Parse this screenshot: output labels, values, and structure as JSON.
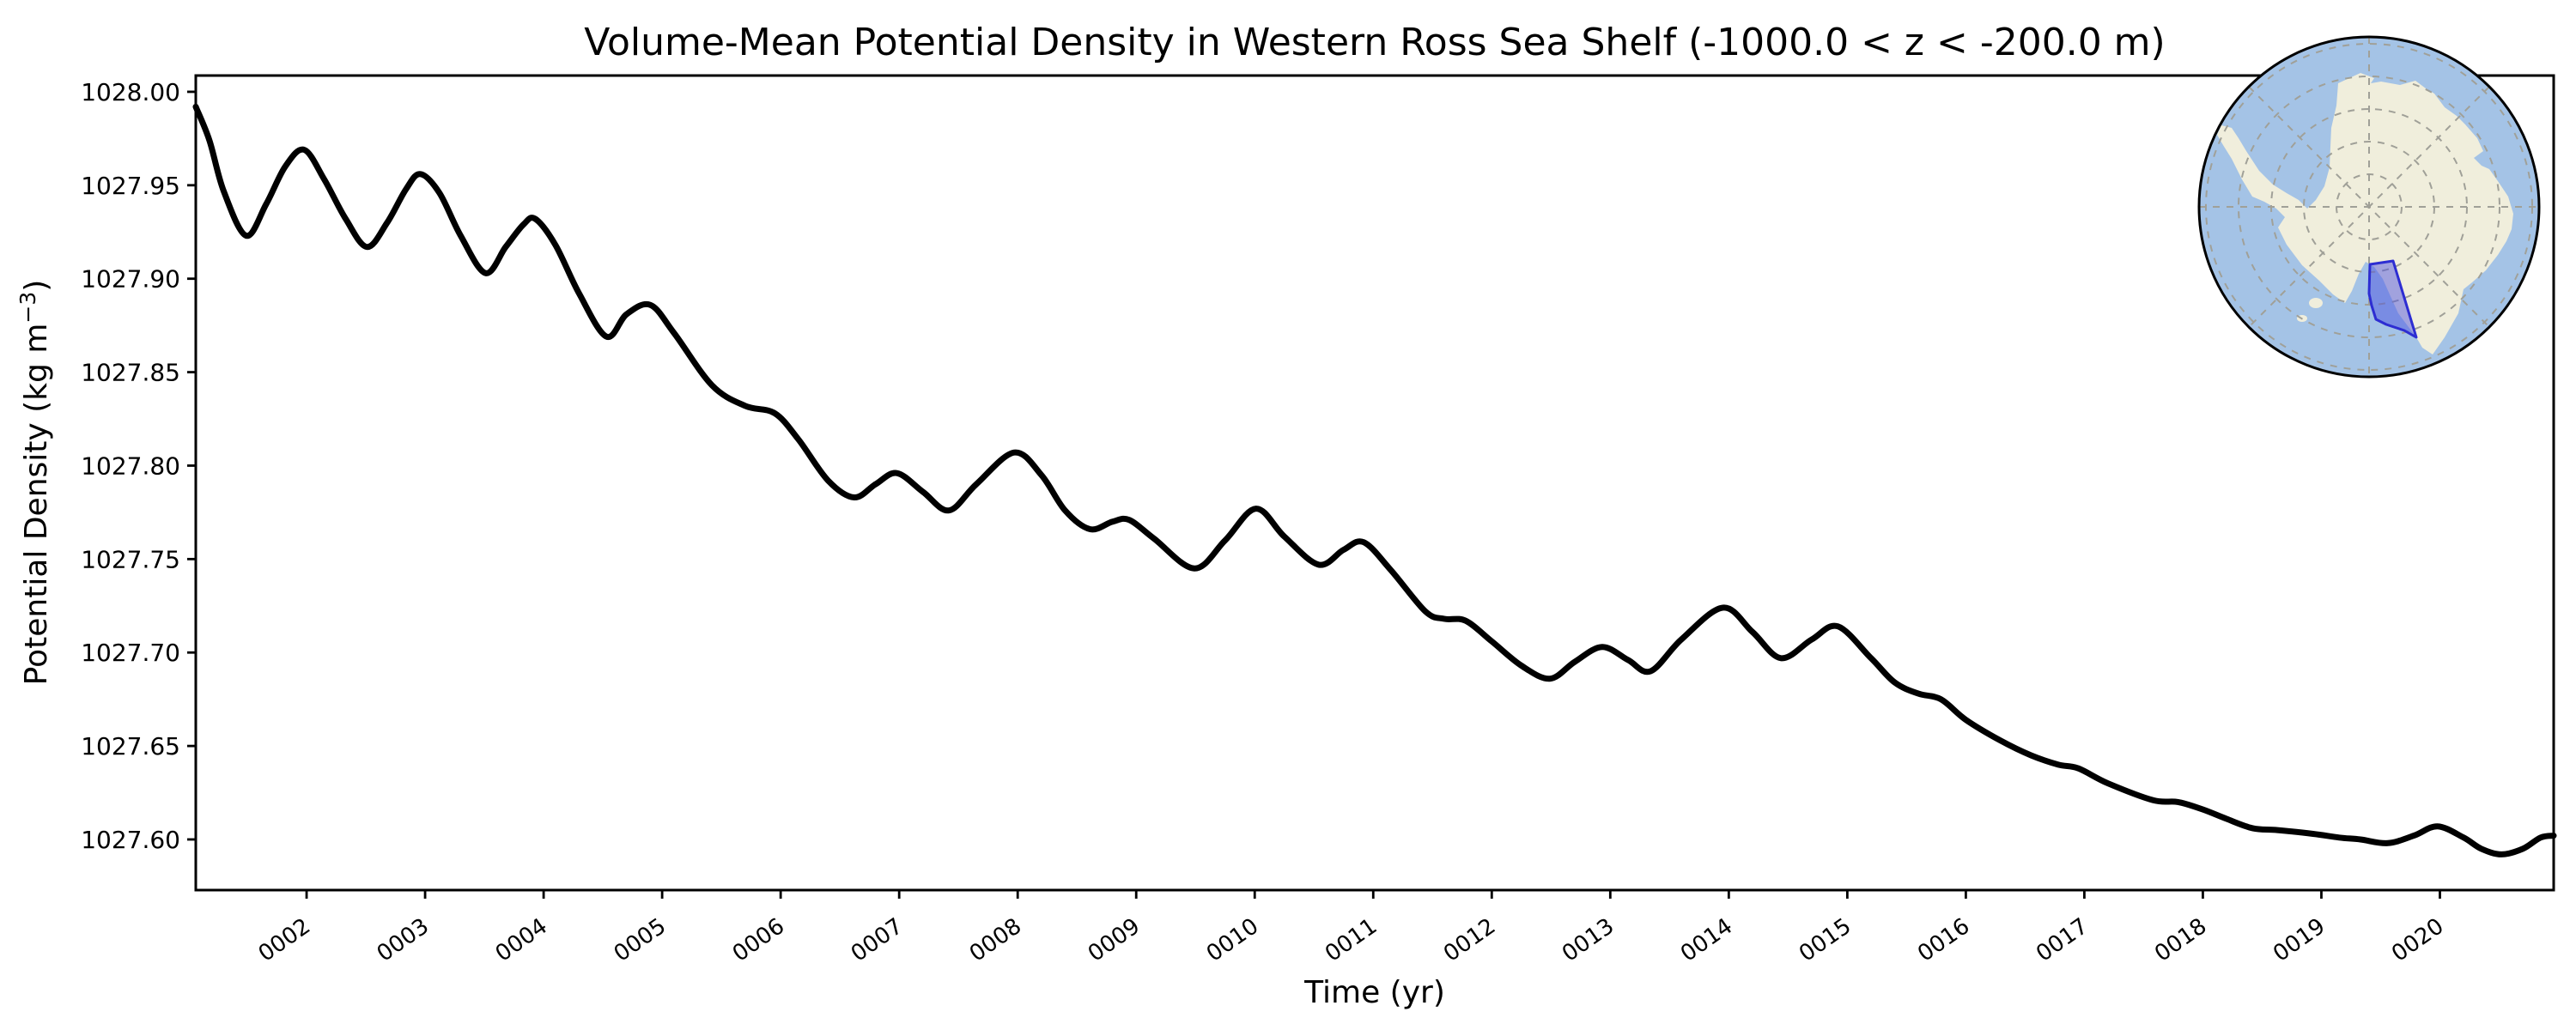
{
  "title": "Volume-Mean Potential Density in Western Ross Sea Shelf (-1000.0 < z < -200.0 m)",
  "chart_data": {
    "type": "line",
    "title": "Volume-Mean Potential Density in Western Ross Sea Shelf (-1000.0 < z < -200.0 m)",
    "xlabel": "Time (yr)",
    "ylabel": "Potential Density (kg m⁻³)",
    "ylabel_parts": {
      "pre": "Potential Density (kg m",
      "sup": "−3",
      "post": ")"
    },
    "xlim": [
      1.065,
      20.96
    ],
    "ylim": [
      1027.5729,
      1028.0087
    ],
    "grid": false,
    "legend": "none",
    "line_color": "#000000",
    "line_width": 7,
    "x_tick_values": [
      2,
      3,
      4,
      5,
      6,
      7,
      8,
      9,
      10,
      11,
      12,
      13,
      14,
      15,
      16,
      17,
      18,
      19,
      20
    ],
    "x_tick_labels": [
      "0002",
      "0003",
      "0004",
      "0005",
      "0006",
      "0007",
      "0008",
      "0009",
      "0010",
      "0011",
      "0012",
      "0013",
      "0014",
      "0015",
      "0016",
      "0017",
      "0018",
      "0019",
      "0020"
    ],
    "y_tick_values": [
      1028.0,
      1027.95,
      1027.9,
      1027.85,
      1027.8,
      1027.75,
      1027.7,
      1027.65,
      1027.6
    ],
    "y_tick_labels": [
      "1028.00",
      "1027.95",
      "1027.90",
      "1027.85",
      "1027.80",
      "1027.75",
      "1027.70",
      "1027.65",
      "1027.60"
    ],
    "series": [
      {
        "name": "volume-mean potential density",
        "points": [
          [
            1.065,
            1027.992
          ],
          [
            1.18,
            1027.974
          ],
          [
            1.3,
            1027.947
          ],
          [
            1.49,
            1027.923
          ],
          [
            1.66,
            1027.94
          ],
          [
            1.82,
            1027.96
          ],
          [
            1.98,
            1027.969
          ],
          [
            2.15,
            1027.953
          ],
          [
            2.33,
            1027.932
          ],
          [
            2.51,
            1027.917
          ],
          [
            2.68,
            1027.93
          ],
          [
            2.84,
            1027.948
          ],
          [
            2.96,
            1027.956
          ],
          [
            3.12,
            1027.946
          ],
          [
            3.3,
            1027.923
          ],
          [
            3.51,
            1027.903
          ],
          [
            3.68,
            1027.917
          ],
          [
            3.83,
            1027.929
          ],
          [
            3.93,
            1027.932
          ],
          [
            4.1,
            1027.918
          ],
          [
            4.3,
            1027.892
          ],
          [
            4.53,
            1027.869
          ],
          [
            4.7,
            1027.881
          ],
          [
            4.9,
            1027.886
          ],
          [
            5.1,
            1027.871
          ],
          [
            5.42,
            1027.843
          ],
          [
            5.7,
            1027.832
          ],
          [
            5.95,
            1027.828
          ],
          [
            6.15,
            1027.814
          ],
          [
            6.4,
            1027.792
          ],
          [
            6.62,
            1027.783
          ],
          [
            6.8,
            1027.79
          ],
          [
            6.98,
            1027.796
          ],
          [
            7.2,
            1027.786
          ],
          [
            7.42,
            1027.776
          ],
          [
            7.65,
            1027.79
          ],
          [
            7.97,
            1027.807
          ],
          [
            8.2,
            1027.795
          ],
          [
            8.4,
            1027.776
          ],
          [
            8.61,
            1027.766
          ],
          [
            8.8,
            1027.77
          ],
          [
            8.94,
            1027.771
          ],
          [
            9.15,
            1027.761
          ],
          [
            9.49,
            1027.745
          ],
          [
            9.75,
            1027.76
          ],
          [
            10.01,
            1027.777
          ],
          [
            10.25,
            1027.762
          ],
          [
            10.54,
            1027.747
          ],
          [
            10.75,
            1027.755
          ],
          [
            10.92,
            1027.759
          ],
          [
            11.15,
            1027.744
          ],
          [
            11.44,
            1027.722
          ],
          [
            11.6,
            1027.718
          ],
          [
            11.78,
            1027.717
          ],
          [
            12.0,
            1027.706
          ],
          [
            12.25,
            1027.693
          ],
          [
            12.49,
            1027.686
          ],
          [
            12.7,
            1027.695
          ],
          [
            12.93,
            1027.703
          ],
          [
            13.15,
            1027.696
          ],
          [
            13.34,
            1027.69
          ],
          [
            13.6,
            1027.707
          ],
          [
            13.95,
            1027.724
          ],
          [
            14.2,
            1027.711
          ],
          [
            14.44,
            1027.697
          ],
          [
            14.7,
            1027.707
          ],
          [
            14.92,
            1027.714
          ],
          [
            15.2,
            1027.697
          ],
          [
            15.4,
            1027.684
          ],
          [
            15.6,
            1027.678
          ],
          [
            15.79,
            1027.675
          ],
          [
            16.0,
            1027.664
          ],
          [
            16.29,
            1027.653
          ],
          [
            16.55,
            1027.645
          ],
          [
            16.78,
            1027.64
          ],
          [
            16.95,
            1027.638
          ],
          [
            17.2,
            1027.63
          ],
          [
            17.58,
            1027.621
          ],
          [
            17.79,
            1027.62
          ],
          [
            18.0,
            1027.616
          ],
          [
            18.2,
            1027.611
          ],
          [
            18.42,
            1027.606
          ],
          [
            18.63,
            1027.605
          ],
          [
            18.93,
            1027.603
          ],
          [
            19.15,
            1027.601
          ],
          [
            19.33,
            1027.6
          ],
          [
            19.56,
            1027.598
          ],
          [
            19.78,
            1027.602
          ],
          [
            19.98,
            1027.607
          ],
          [
            20.2,
            1027.601
          ],
          [
            20.35,
            1027.595
          ],
          [
            20.52,
            1027.592
          ],
          [
            20.7,
            1027.595
          ],
          [
            20.85,
            1027.601
          ],
          [
            20.96,
            1027.602
          ]
        ]
      }
    ]
  },
  "inset_map": {
    "description": "South polar view of Antarctica with highlighted study region",
    "region_label": "Western Ross Sea Shelf",
    "ocean_color": "#a4c3e6",
    "land_color": "#f0eedc",
    "graticule_color": "#a0a098",
    "globe_edge_color": "#000000",
    "region_fill": "#4b50e0",
    "region_opacity": 0.48,
    "region_border": "#2d2dd2"
  }
}
